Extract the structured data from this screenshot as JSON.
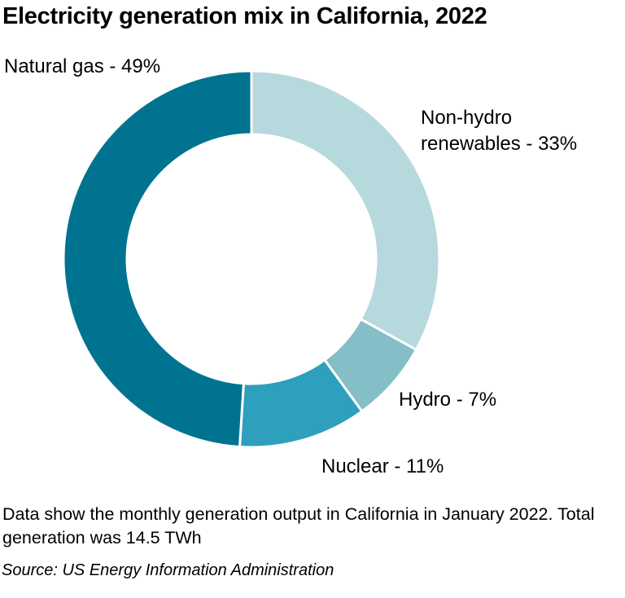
{
  "title": "Electricity generation mix in California, 2022",
  "chart_data": {
    "type": "pie",
    "slices": [
      {
        "label_lines": [
          "Non-hydro",
          "renewables - 33%"
        ],
        "value": 33,
        "color": "#b6d9de"
      },
      {
        "label_lines": [
          "Hydro - 7%"
        ],
        "value": 7,
        "color": "#84bec6"
      },
      {
        "label_lines": [
          "Nuclear - 11%"
        ],
        "value": 11,
        "color": "#2e9fbd"
      },
      {
        "label_lines": [
          "Natural gas - 49%"
        ],
        "value": 49,
        "color": "#007391"
      }
    ]
  },
  "note": "Data show the monthly generation output in California in January 2022. Total generation was 14.5 TWh",
  "source": "Source: US Energy Information Administration"
}
